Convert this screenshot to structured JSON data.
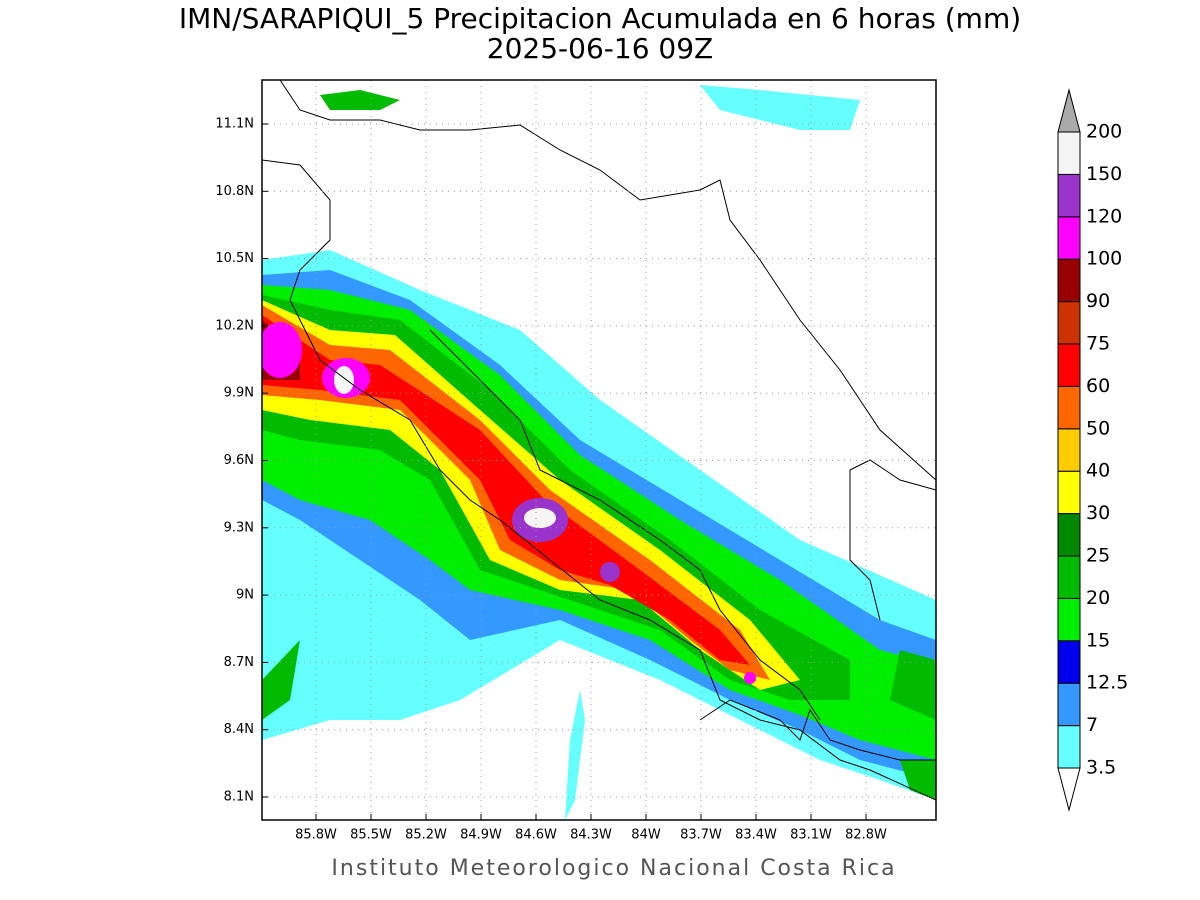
{
  "header": {
    "title": "IMN/SARAPIQUI_5 Precipitacion Acumulada en 6 horas (mm)",
    "subtitle": "2025-06-16 09Z"
  },
  "map": {
    "lon_ticks": [
      "85.8W",
      "85.5W",
      "85.2W",
      "84.9W",
      "84.6W",
      "84.3W",
      "84W",
      "83.7W",
      "83.4W",
      "83.1W",
      "82.8W"
    ],
    "lat_ticks": [
      "11.1N",
      "10.8N",
      "10.5N",
      "10.2N",
      "9.9N",
      "9.6N",
      "9.3N",
      "9N",
      "8.7N",
      "8.4N",
      "8.1N"
    ]
  },
  "colorbar": {
    "levels": [
      "3.5",
      "7",
      "12.5",
      "15",
      "20",
      "25",
      "30",
      "40",
      "50",
      "60",
      "75",
      "90",
      "100",
      "120",
      "150",
      "200"
    ],
    "colors": [
      "#ffffff",
      "#66ffff",
      "#3399ff",
      "#0000ee",
      "#00ee00",
      "#00bb00",
      "#008800",
      "#ffff00",
      "#ffcc00",
      "#ff6600",
      "#ff0000",
      "#cc3300",
      "#990000",
      "#ff00ff",
      "#9933cc",
      "#f5f5f5",
      "#aaaaaa"
    ]
  },
  "footer": "Instituto Meteorologico Nacional Costa Rica"
}
